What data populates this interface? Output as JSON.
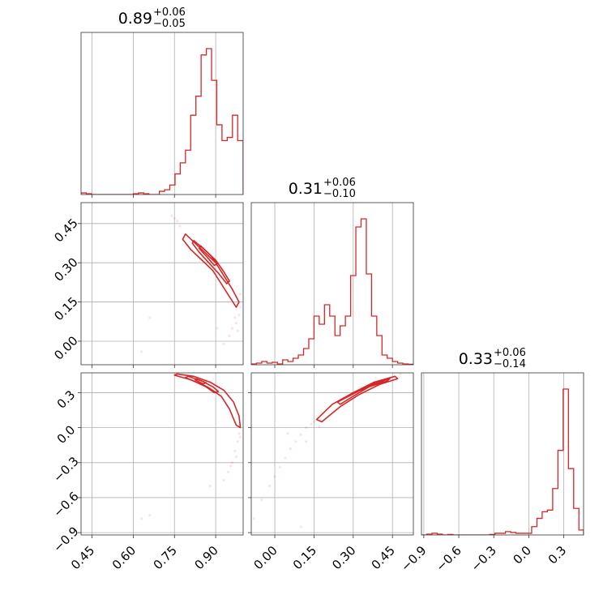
{
  "chart_data": {
    "type": "corner",
    "color": "#d62728",
    "parameters": [
      {
        "median": "0.89",
        "plus": "+0.06",
        "minus": "−0.05",
        "range": [
          0.41,
          1.0
        ]
      },
      {
        "median": "0.31",
        "plus": "+0.06",
        "minus": "−0.10",
        "range": [
          -0.09,
          0.53
        ]
      },
      {
        "median": "0.33",
        "plus": "+0.06",
        "minus": "−0.14",
        "range": [
          -0.92,
          0.47
        ]
      }
    ],
    "ticks": [
      {
        "values": [
          0.45,
          0.6,
          0.75,
          0.9
        ],
        "labels": [
          "0.45",
          "0.60",
          "0.75",
          "0.90"
        ]
      },
      {
        "values": [
          0.0,
          0.15,
          0.3,
          0.45
        ],
        "labels": [
          "0.00",
          "0.15",
          "0.30",
          "0.45"
        ]
      },
      {
        "values": [
          -0.9,
          -0.6,
          -0.3,
          0.0,
          0.3
        ],
        "labels": [
          "−0.9",
          "−0.6",
          "−0.3",
          "0.0",
          "0.3"
        ]
      }
    ],
    "histograms": [
      {
        "edges": [
          0.41,
          0.429,
          0.448,
          0.467,
          0.486,
          0.505,
          0.524,
          0.543,
          0.562,
          0.581,
          0.6,
          0.619,
          0.638,
          0.657,
          0.676,
          0.695,
          0.714,
          0.733,
          0.752,
          0.771,
          0.79,
          0.809,
          0.828,
          0.847,
          0.866,
          0.885,
          0.904,
          0.923,
          0.942,
          0.961,
          0.98,
          1.0
        ],
        "counts": [
          0.01,
          0.005,
          0,
          0,
          0,
          0,
          0,
          0,
          0,
          0,
          0.005,
          0.01,
          0.005,
          0,
          0,
          0.02,
          0.03,
          0.06,
          0.13,
          0.2,
          0.28,
          0.5,
          0.62,
          0.88,
          0.92,
          0.72,
          0.44,
          0.34,
          0.36,
          0.5,
          0.34
        ]
      },
      {
        "edges": [
          -0.09,
          -0.07,
          -0.05,
          -0.03,
          -0.01,
          0.01,
          0.03,
          0.05,
          0.07,
          0.09,
          0.11,
          0.13,
          0.15,
          0.17,
          0.19,
          0.21,
          0.23,
          0.25,
          0.27,
          0.29,
          0.31,
          0.33,
          0.35,
          0.37,
          0.39,
          0.41,
          0.43,
          0.45,
          0.47,
          0.49,
          0.51,
          0.53
        ],
        "counts": [
          0.005,
          0.01,
          0.02,
          0.01,
          0.015,
          0.005,
          0.03,
          0.02,
          0.04,
          0.06,
          0.1,
          0.16,
          0.3,
          0.25,
          0.37,
          0.3,
          0.18,
          0.24,
          0.3,
          0.55,
          0.85,
          0.9,
          0.56,
          0.3,
          0.18,
          0.06,
          0.04,
          0.02,
          0.01,
          0.005,
          0.003
        ]
      },
      {
        "edges": [
          -0.92,
          -0.875,
          -0.83,
          -0.785,
          -0.74,
          -0.695,
          -0.65,
          -0.605,
          -0.56,
          -0.515,
          -0.47,
          -0.425,
          -0.38,
          -0.335,
          -0.29,
          -0.245,
          -0.2,
          -0.155,
          -0.11,
          -0.065,
          -0.02,
          0.025,
          0.07,
          0.115,
          0.16,
          0.205,
          0.25,
          0.295,
          0.34,
          0.385,
          0.43,
          0.47
        ],
        "counts": [
          0,
          0.005,
          0.01,
          0.005,
          0,
          0.003,
          0,
          0,
          0,
          0,
          0,
          0,
          0,
          0.003,
          0.01,
          0.01,
          0.02,
          0.015,
          0.01,
          0.01,
          0.01,
          0.05,
          0.1,
          0.14,
          0.15,
          0.28,
          0.51,
          0.88,
          0.4,
          0.16,
          0.03
        ]
      }
    ],
    "pairs": [
      {
        "x": 0,
        "y": 1,
        "contours": [
          [
            [
              0.79,
              0.41
            ],
            [
              0.82,
              0.38
            ],
            [
              0.86,
              0.34
            ],
            [
              0.9,
              0.3
            ],
            [
              0.93,
              0.25
            ],
            [
              0.96,
              0.2
            ],
            [
              0.985,
              0.15
            ],
            [
              0.975,
              0.13
            ],
            [
              0.95,
              0.17
            ],
            [
              0.92,
              0.22
            ],
            [
              0.89,
              0.27
            ],
            [
              0.85,
              0.31
            ],
            [
              0.81,
              0.35
            ],
            [
              0.78,
              0.39
            ],
            [
              0.79,
              0.41
            ]
          ],
          [
            [
              0.82,
              0.385
            ],
            [
              0.86,
              0.35
            ],
            [
              0.9,
              0.31
            ],
            [
              0.93,
              0.265
            ],
            [
              0.95,
              0.23
            ],
            [
              0.94,
              0.22
            ],
            [
              0.91,
              0.26
            ],
            [
              0.875,
              0.3
            ],
            [
              0.84,
              0.34
            ],
            [
              0.815,
              0.375
            ],
            [
              0.82,
              0.385
            ]
          ],
          [
            [
              0.845,
              0.365
            ],
            [
              0.88,
              0.33
            ],
            [
              0.905,
              0.295
            ],
            [
              0.895,
              0.29
            ],
            [
              0.87,
              0.32
            ],
            [
              0.84,
              0.355
            ],
            [
              0.845,
              0.365
            ]
          ]
        ],
        "points": [
          [
            0.74,
            0.48
          ],
          [
            0.76,
            0.46
          ],
          [
            0.77,
            0.44
          ],
          [
            0.75,
            0.47
          ],
          [
            0.985,
            0.1
          ],
          [
            0.975,
            0.07
          ],
          [
            0.96,
            0.05
          ],
          [
            0.95,
            0.02
          ],
          [
            0.93,
            -0.01
          ],
          [
            0.99,
            0.13
          ],
          [
            0.97,
            0.09
          ],
          [
            0.66,
            0.09
          ],
          [
            0.63,
            -0.04
          ],
          [
            0.905,
            0.05
          ],
          [
            0.99,
            0.18
          ],
          [
            0.98,
            0.04
          ]
        ]
      },
      {
        "x": 0,
        "y": 2,
        "contours": [
          [
            [
              0.76,
              0.46
            ],
            [
              0.82,
              0.44
            ],
            [
              0.88,
              0.39
            ],
            [
              0.93,
              0.32
            ],
            [
              0.965,
              0.22
            ],
            [
              0.985,
              0.1
            ],
            [
              0.99,
              0.0
            ],
            [
              0.975,
              0.02
            ],
            [
              0.95,
              0.16
            ],
            [
              0.92,
              0.27
            ],
            [
              0.87,
              0.35
            ],
            [
              0.81,
              0.41
            ],
            [
              0.75,
              0.45
            ],
            [
              0.76,
              0.46
            ]
          ],
          [
            [
              0.8,
              0.44
            ],
            [
              0.85,
              0.4
            ],
            [
              0.89,
              0.35
            ],
            [
              0.91,
              0.31
            ],
            [
              0.895,
              0.3
            ],
            [
              0.865,
              0.35
            ],
            [
              0.82,
              0.4
            ],
            [
              0.79,
              0.43
            ],
            [
              0.8,
              0.44
            ]
          ],
          [
            [
              0.83,
              0.42
            ],
            [
              0.865,
              0.385
            ],
            [
              0.855,
              0.375
            ],
            [
              0.825,
              0.41
            ],
            [
              0.83,
              0.42
            ]
          ]
        ],
        "points": [
          [
            0.985,
            -0.05
          ],
          [
            0.98,
            -0.12
          ],
          [
            0.97,
            -0.2
          ],
          [
            0.96,
            -0.3
          ],
          [
            0.945,
            -0.38
          ],
          [
            0.93,
            -0.45
          ],
          [
            0.99,
            -0.08
          ],
          [
            0.975,
            -0.25
          ],
          [
            0.88,
            -0.5
          ],
          [
            0.66,
            -0.75
          ],
          [
            0.63,
            -0.78
          ],
          [
            0.955,
            -0.33
          ]
        ]
      },
      {
        "x": 1,
        "y": 2,
        "contours": [
          [
            [
              0.16,
              0.07
            ],
            [
              0.22,
              0.2
            ],
            [
              0.3,
              0.3
            ],
            [
              0.38,
              0.39
            ],
            [
              0.46,
              0.44
            ],
            [
              0.47,
              0.42
            ],
            [
              0.4,
              0.37
            ],
            [
              0.32,
              0.28
            ],
            [
              0.25,
              0.18
            ],
            [
              0.18,
              0.05
            ],
            [
              0.16,
              0.07
            ]
          ],
          [
            [
              0.24,
              0.22
            ],
            [
              0.3,
              0.29
            ],
            [
              0.37,
              0.37
            ],
            [
              0.44,
              0.42
            ],
            [
              0.43,
              0.4
            ],
            [
              0.36,
              0.35
            ],
            [
              0.3,
              0.27
            ],
            [
              0.25,
              0.2
            ],
            [
              0.24,
              0.22
            ]
          ],
          [
            [
              0.33,
              0.33
            ],
            [
              0.38,
              0.38
            ],
            [
              0.42,
              0.41
            ],
            [
              0.41,
              0.39
            ],
            [
              0.37,
              0.36
            ],
            [
              0.33,
              0.32
            ],
            [
              0.33,
              0.33
            ]
          ]
        ],
        "points": [
          [
            0.14,
            0.03
          ],
          [
            0.12,
            0.0
          ],
          [
            0.1,
            -0.06
          ],
          [
            0.08,
            -0.12
          ],
          [
            0.06,
            -0.18
          ],
          [
            0.04,
            -0.26
          ],
          [
            0.02,
            -0.34
          ],
          [
            0.0,
            -0.42
          ],
          [
            -0.02,
            -0.5
          ],
          [
            -0.05,
            -0.62
          ],
          [
            0.12,
            -0.12
          ],
          [
            0.15,
            0.05
          ],
          [
            0.1,
            -0.85
          ],
          [
            -0.08,
            -0.78
          ],
          [
            0.05,
            -0.05
          ],
          [
            0.48,
            0.46
          ],
          [
            0.17,
            0.01
          ]
        ]
      }
    ]
  }
}
